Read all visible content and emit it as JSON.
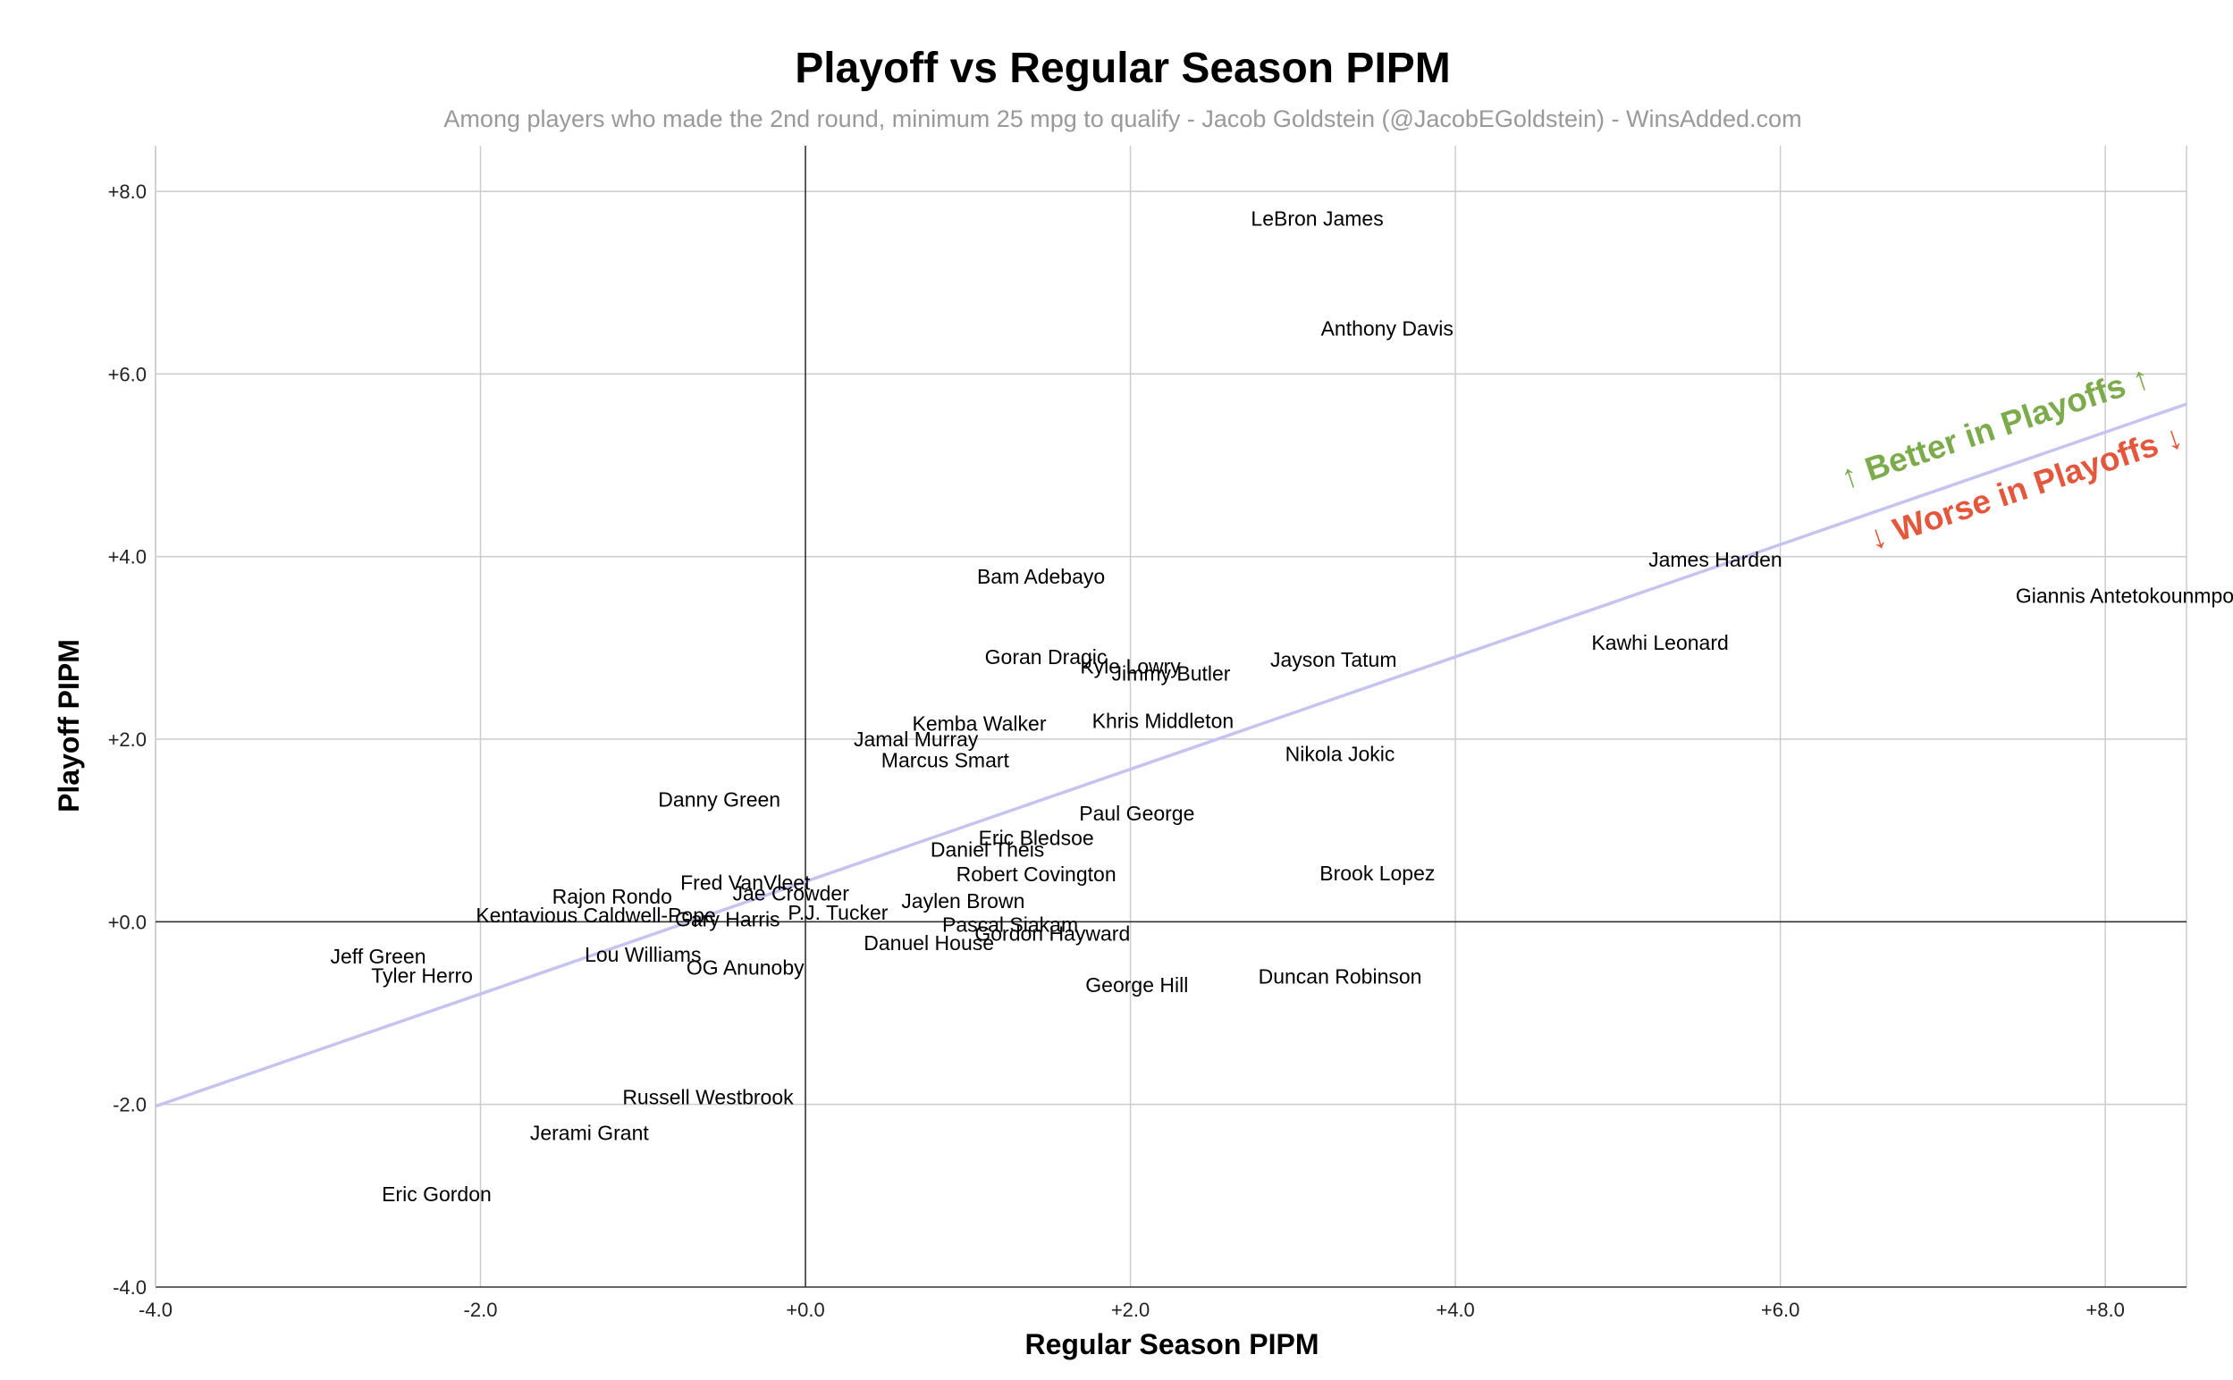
{
  "chart_data": {
    "type": "scatter",
    "title": "Playoff vs Regular Season PIPM",
    "subtitle": "Among players who made the 2nd round, minimum 25 mpg to qualify - Jacob Goldstein (@JacobEGoldstein) - WinsAdded.com",
    "xlabel": "Regular Season PIPM",
    "ylabel": "Playoff PIPM",
    "xlim": [
      -4,
      8.5
    ],
    "ylim": [
      -4,
      8.5
    ],
    "x_ticks": [
      -4,
      -2,
      0,
      2,
      4,
      6,
      8
    ],
    "x_tick_labels": [
      "-4.0",
      "-2.0",
      "+0.0",
      "+2.0",
      "+4.0",
      "+6.0",
      "+8.0"
    ],
    "y_ticks": [
      -4,
      -2,
      0,
      2,
      4,
      6,
      8
    ],
    "y_tick_labels": [
      "-4.0",
      "-2.0",
      "+0.0",
      "+2.0",
      "+4.0",
      "+6.0",
      "+8.0"
    ],
    "grid": true,
    "trendline": {
      "x": [
        -4,
        8.5
      ],
      "y": [
        -2.02,
        5.67
      ]
    },
    "annotations": [
      {
        "text": "↑ Better in Playoffs ↑",
        "color": "#7cab4c"
      },
      {
        "text": "↓ Worse in Playoffs ↓",
        "color": "#e5573c"
      }
    ],
    "points": [
      {
        "name": "LeBron James",
        "x": 3.15,
        "y": 7.7
      },
      {
        "name": "Anthony Davis",
        "x": 3.58,
        "y": 6.5
      },
      {
        "name": "James Harden",
        "x": 5.6,
        "y": 3.97
      },
      {
        "name": "Giannis Antetokounmpo",
        "x": 8.12,
        "y": 3.57
      },
      {
        "name": "Kawhi Leonard",
        "x": 5.26,
        "y": 3.06
      },
      {
        "name": "Bam Adebayo",
        "x": 1.45,
        "y": 3.78
      },
      {
        "name": "Goran Dragic",
        "x": 1.48,
        "y": 2.9
      },
      {
        "name": "Kyle Lowry",
        "x": 2.0,
        "y": 2.8
      },
      {
        "name": "Jimmy Butler",
        "x": 2.25,
        "y": 2.72
      },
      {
        "name": "Jayson Tatum",
        "x": 3.25,
        "y": 2.87
      },
      {
        "name": "Kemba Walker",
        "x": 1.07,
        "y": 2.17
      },
      {
        "name": "Khris Middleton",
        "x": 2.2,
        "y": 2.2
      },
      {
        "name": "Jamal Murray",
        "x": 0.68,
        "y": 2.0
      },
      {
        "name": "Marcus Smart",
        "x": 0.86,
        "y": 1.77
      },
      {
        "name": "Nikola Jokic",
        "x": 3.29,
        "y": 1.84
      },
      {
        "name": "Danny Green",
        "x": -0.53,
        "y": 1.34
      },
      {
        "name": "Paul George",
        "x": 2.04,
        "y": 1.19
      },
      {
        "name": "Eric Bledsoe",
        "x": 1.42,
        "y": 0.92
      },
      {
        "name": "Daniel Theis",
        "x": 1.12,
        "y": 0.79
      },
      {
        "name": "Robert Covington",
        "x": 1.42,
        "y": 0.52
      },
      {
        "name": "Brook Lopez",
        "x": 3.52,
        "y": 0.53
      },
      {
        "name": "Fred VanVleet",
        "x": -0.37,
        "y": 0.43
      },
      {
        "name": "Jae Crowder",
        "x": -0.09,
        "y": 0.31
      },
      {
        "name": "Rajon Rondo",
        "x": -1.19,
        "y": 0.28
      },
      {
        "name": "Jaylen Brown",
        "x": 0.97,
        "y": 0.23
      },
      {
        "name": "P.J. Tucker",
        "x": 0.2,
        "y": 0.1
      },
      {
        "name": "Kentavious Caldwell-Pope",
        "x": -1.29,
        "y": 0.07
      },
      {
        "name": "Gary Harris",
        "x": -0.48,
        "y": 0.03
      },
      {
        "name": "Pascal Siakam",
        "x": 1.26,
        "y": -0.03
      },
      {
        "name": "Gordon Hayward",
        "x": 1.52,
        "y": -0.13
      },
      {
        "name": "Danuel House",
        "x": 0.76,
        "y": -0.23
      },
      {
        "name": "Jeff Green",
        "x": -2.63,
        "y": -0.38
      },
      {
        "name": "Lou Williams",
        "x": -1.0,
        "y": -0.36
      },
      {
        "name": "Tyler Herro",
        "x": -2.36,
        "y": -0.59
      },
      {
        "name": "OG Anunoby",
        "x": -0.37,
        "y": -0.5
      },
      {
        "name": "George Hill",
        "x": 2.04,
        "y": -0.69
      },
      {
        "name": "Duncan Robinson",
        "x": 3.29,
        "y": -0.6
      },
      {
        "name": "Russell Westbrook",
        "x": -0.6,
        "y": -1.92
      },
      {
        "name": "Jerami Grant",
        "x": -1.33,
        "y": -2.31
      },
      {
        "name": "Eric Gordon",
        "x": -2.27,
        "y": -2.98
      }
    ]
  }
}
